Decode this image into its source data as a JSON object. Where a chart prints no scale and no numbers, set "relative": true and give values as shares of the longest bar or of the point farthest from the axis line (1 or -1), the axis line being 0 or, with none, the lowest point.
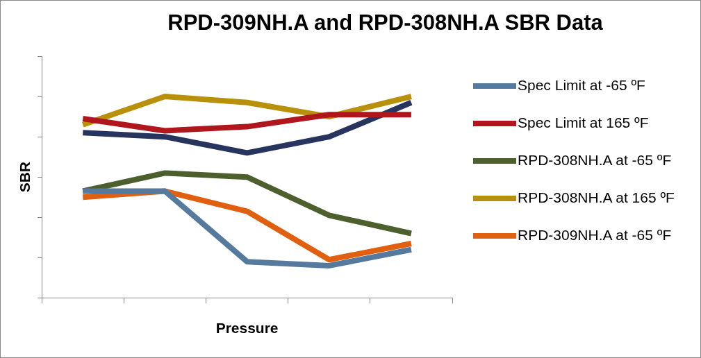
{
  "chart_data": {
    "type": "line",
    "title": "RPD-309NH.A and RPD-308NH.A SBR Data",
    "xlabel": "Pressure",
    "ylabel": "SBR",
    "relative": true,
    "grid": false,
    "legend": "right",
    "marker": "none",
    "line_style": "solid",
    "categories": [
      null,
      null,
      null,
      null,
      null
    ],
    "series": [
      {
        "name": "Spec Limit at -65 ºF",
        "color": "#557a9e",
        "values": [
          0.53,
          0.53,
          0.18,
          0.16,
          0.24
        ]
      },
      {
        "name": "Spec Limit at 165 ºF",
        "color": "#b0161b",
        "values": [
          0.89,
          0.83,
          0.85,
          0.91,
          0.91
        ]
      },
      {
        "name": "RPD-308NH.A at -65 ºF",
        "color": "#4e5f2e",
        "values": [
          0.53,
          0.62,
          0.6,
          0.41,
          0.32
        ]
      },
      {
        "name": "RPD-308NH.A at 165 ºF",
        "color": "#b8900a",
        "values": [
          0.86,
          1.0,
          0.97,
          0.9,
          1.0
        ]
      },
      {
        "name": "RPD-309NH.A at -65 ºF",
        "color": "#e06010",
        "values": [
          0.5,
          0.53,
          0.43,
          0.19,
          0.27
        ]
      },
      {
        "color": "#27345e",
        "values": [
          0.82,
          0.8,
          0.72,
          0.8,
          0.97
        ]
      }
    ]
  }
}
